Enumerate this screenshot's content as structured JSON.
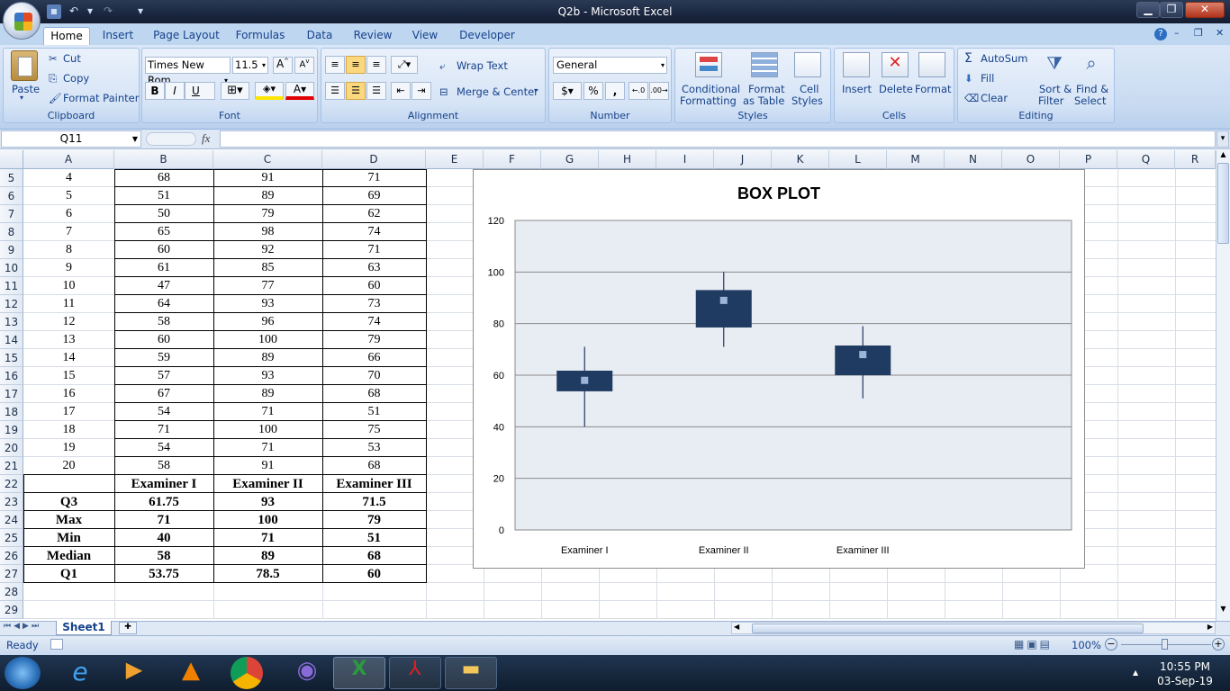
{
  "window": {
    "title": "Q2b - Microsoft Excel"
  },
  "ribbon_tabs": [
    "Home",
    "Insert",
    "Page Layout",
    "Formulas",
    "Data",
    "Review",
    "View",
    "Developer"
  ],
  "clipboard": {
    "paste": "Paste",
    "cut": "Cut",
    "copy": "Copy",
    "format_painter": "Format Painter",
    "label": "Clipboard"
  },
  "font": {
    "name": "Times New Rom",
    "size": "11.5",
    "bold": "B",
    "italic": "I",
    "underline": "U",
    "label": "Font"
  },
  "alignment": {
    "wrap_text": "Wrap Text",
    "merge_center": "Merge & Center",
    "label": "Alignment"
  },
  "number": {
    "format": "General",
    "currency": "$",
    "percent": "%",
    "comma": ",",
    "inc_decimal": ".00 →.0",
    "label": "Number"
  },
  "styles": {
    "conditional": "Conditional",
    "conditional2": "Formatting",
    "format_as": "Format",
    "format_as2": "as Table",
    "cell": "Cell",
    "cell2": "Styles",
    "label": "Styles"
  },
  "cells": {
    "insert": "Insert",
    "delete": "Delete",
    "format": "Format",
    "label": "Cells"
  },
  "editing": {
    "autosum": "AutoSum",
    "fill": "Fill",
    "clear": "Clear",
    "sort": "Sort &",
    "sort2": "Filter",
    "find": "Find &",
    "find2": "Select",
    "label": "Editing"
  },
  "formula_bar": {
    "name_box": "Q11",
    "fx": "fx",
    "value": ""
  },
  "columns": [
    "A",
    "B",
    "C",
    "D",
    "E",
    "F",
    "G",
    "H",
    "I",
    "J",
    "K",
    "L",
    "M",
    "N",
    "O",
    "P",
    "Q",
    "R"
  ],
  "rows": [
    {
      "n": "5",
      "a": "4",
      "b": "68",
      "c": "91",
      "d": "71"
    },
    {
      "n": "6",
      "a": "5",
      "b": "51",
      "c": "89",
      "d": "69"
    },
    {
      "n": "7",
      "a": "6",
      "b": "50",
      "c": "79",
      "d": "62"
    },
    {
      "n": "8",
      "a": "7",
      "b": "65",
      "c": "98",
      "d": "74"
    },
    {
      "n": "9",
      "a": "8",
      "b": "60",
      "c": "92",
      "d": "71"
    },
    {
      "n": "10",
      "a": "9",
      "b": "61",
      "c": "85",
      "d": "63"
    },
    {
      "n": "11",
      "a": "10",
      "b": "47",
      "c": "77",
      "d": "60"
    },
    {
      "n": "12",
      "a": "11",
      "b": "64",
      "c": "93",
      "d": "73"
    },
    {
      "n": "13",
      "a": "12",
      "b": "58",
      "c": "96",
      "d": "74"
    },
    {
      "n": "14",
      "a": "13",
      "b": "60",
      "c": "100",
      "d": "79"
    },
    {
      "n": "15",
      "a": "14",
      "b": "59",
      "c": "89",
      "d": "66"
    },
    {
      "n": "16",
      "a": "15",
      "b": "57",
      "c": "93",
      "d": "70"
    },
    {
      "n": "17",
      "a": "16",
      "b": "67",
      "c": "89",
      "d": "68"
    },
    {
      "n": "18",
      "a": "17",
      "b": "54",
      "c": "71",
      "d": "51"
    },
    {
      "n": "19",
      "a": "18",
      "b": "71",
      "c": "100",
      "d": "75"
    },
    {
      "n": "20",
      "a": "19",
      "b": "54",
      "c": "71",
      "d": "53"
    },
    {
      "n": "21",
      "a": "20",
      "b": "58",
      "c": "91",
      "d": "68"
    },
    {
      "n": "22",
      "a": "",
      "b": "Examiner I",
      "c": "Examiner II",
      "d": "Examiner III",
      "bold": true
    },
    {
      "n": "23",
      "a": "Q3",
      "b": "61.75",
      "c": "93",
      "d": "71.5",
      "bold": true
    },
    {
      "n": "24",
      "a": "Max",
      "b": "71",
      "c": "100",
      "d": "79",
      "bold": true
    },
    {
      "n": "25",
      "a": "Min",
      "b": "40",
      "c": "71",
      "d": "51",
      "bold": true
    },
    {
      "n": "26",
      "a": "Median",
      "b": "58",
      "c": "89",
      "d": "68",
      "bold": true
    },
    {
      "n": "27",
      "a": "Q1",
      "b": "53.75",
      "c": "78.5",
      "d": "60",
      "bold": true
    },
    {
      "n": "28",
      "a": "",
      "b": "",
      "c": "",
      "d": ""
    },
    {
      "n": "29",
      "a": "",
      "b": "",
      "c": "",
      "d": ""
    }
  ],
  "chart_data": {
    "type": "box",
    "title": "BOX PLOT",
    "categories": [
      "Examiner I",
      "Examiner II",
      "Examiner III"
    ],
    "q1": [
      53.75,
      78.5,
      60
    ],
    "q3": [
      61.75,
      93,
      71.5
    ],
    "min": [
      40,
      71,
      51
    ],
    "max": [
      71,
      100,
      79
    ],
    "median": [
      58,
      89,
      68
    ],
    "ylim": [
      0,
      120
    ],
    "yticks": [
      0,
      20,
      40,
      60,
      80,
      100,
      120
    ],
    "grid": true,
    "colors": {
      "box": "#1f3b62",
      "median": "#9cb4d8",
      "plot_bg": "#e8ecf3"
    }
  },
  "sheet_tabs": [
    "Sheet1"
  ],
  "status": {
    "ready": "Ready",
    "zoom": "100%"
  },
  "taskbar": {
    "time": "10:55 PM",
    "date": "03-Sep-19"
  }
}
